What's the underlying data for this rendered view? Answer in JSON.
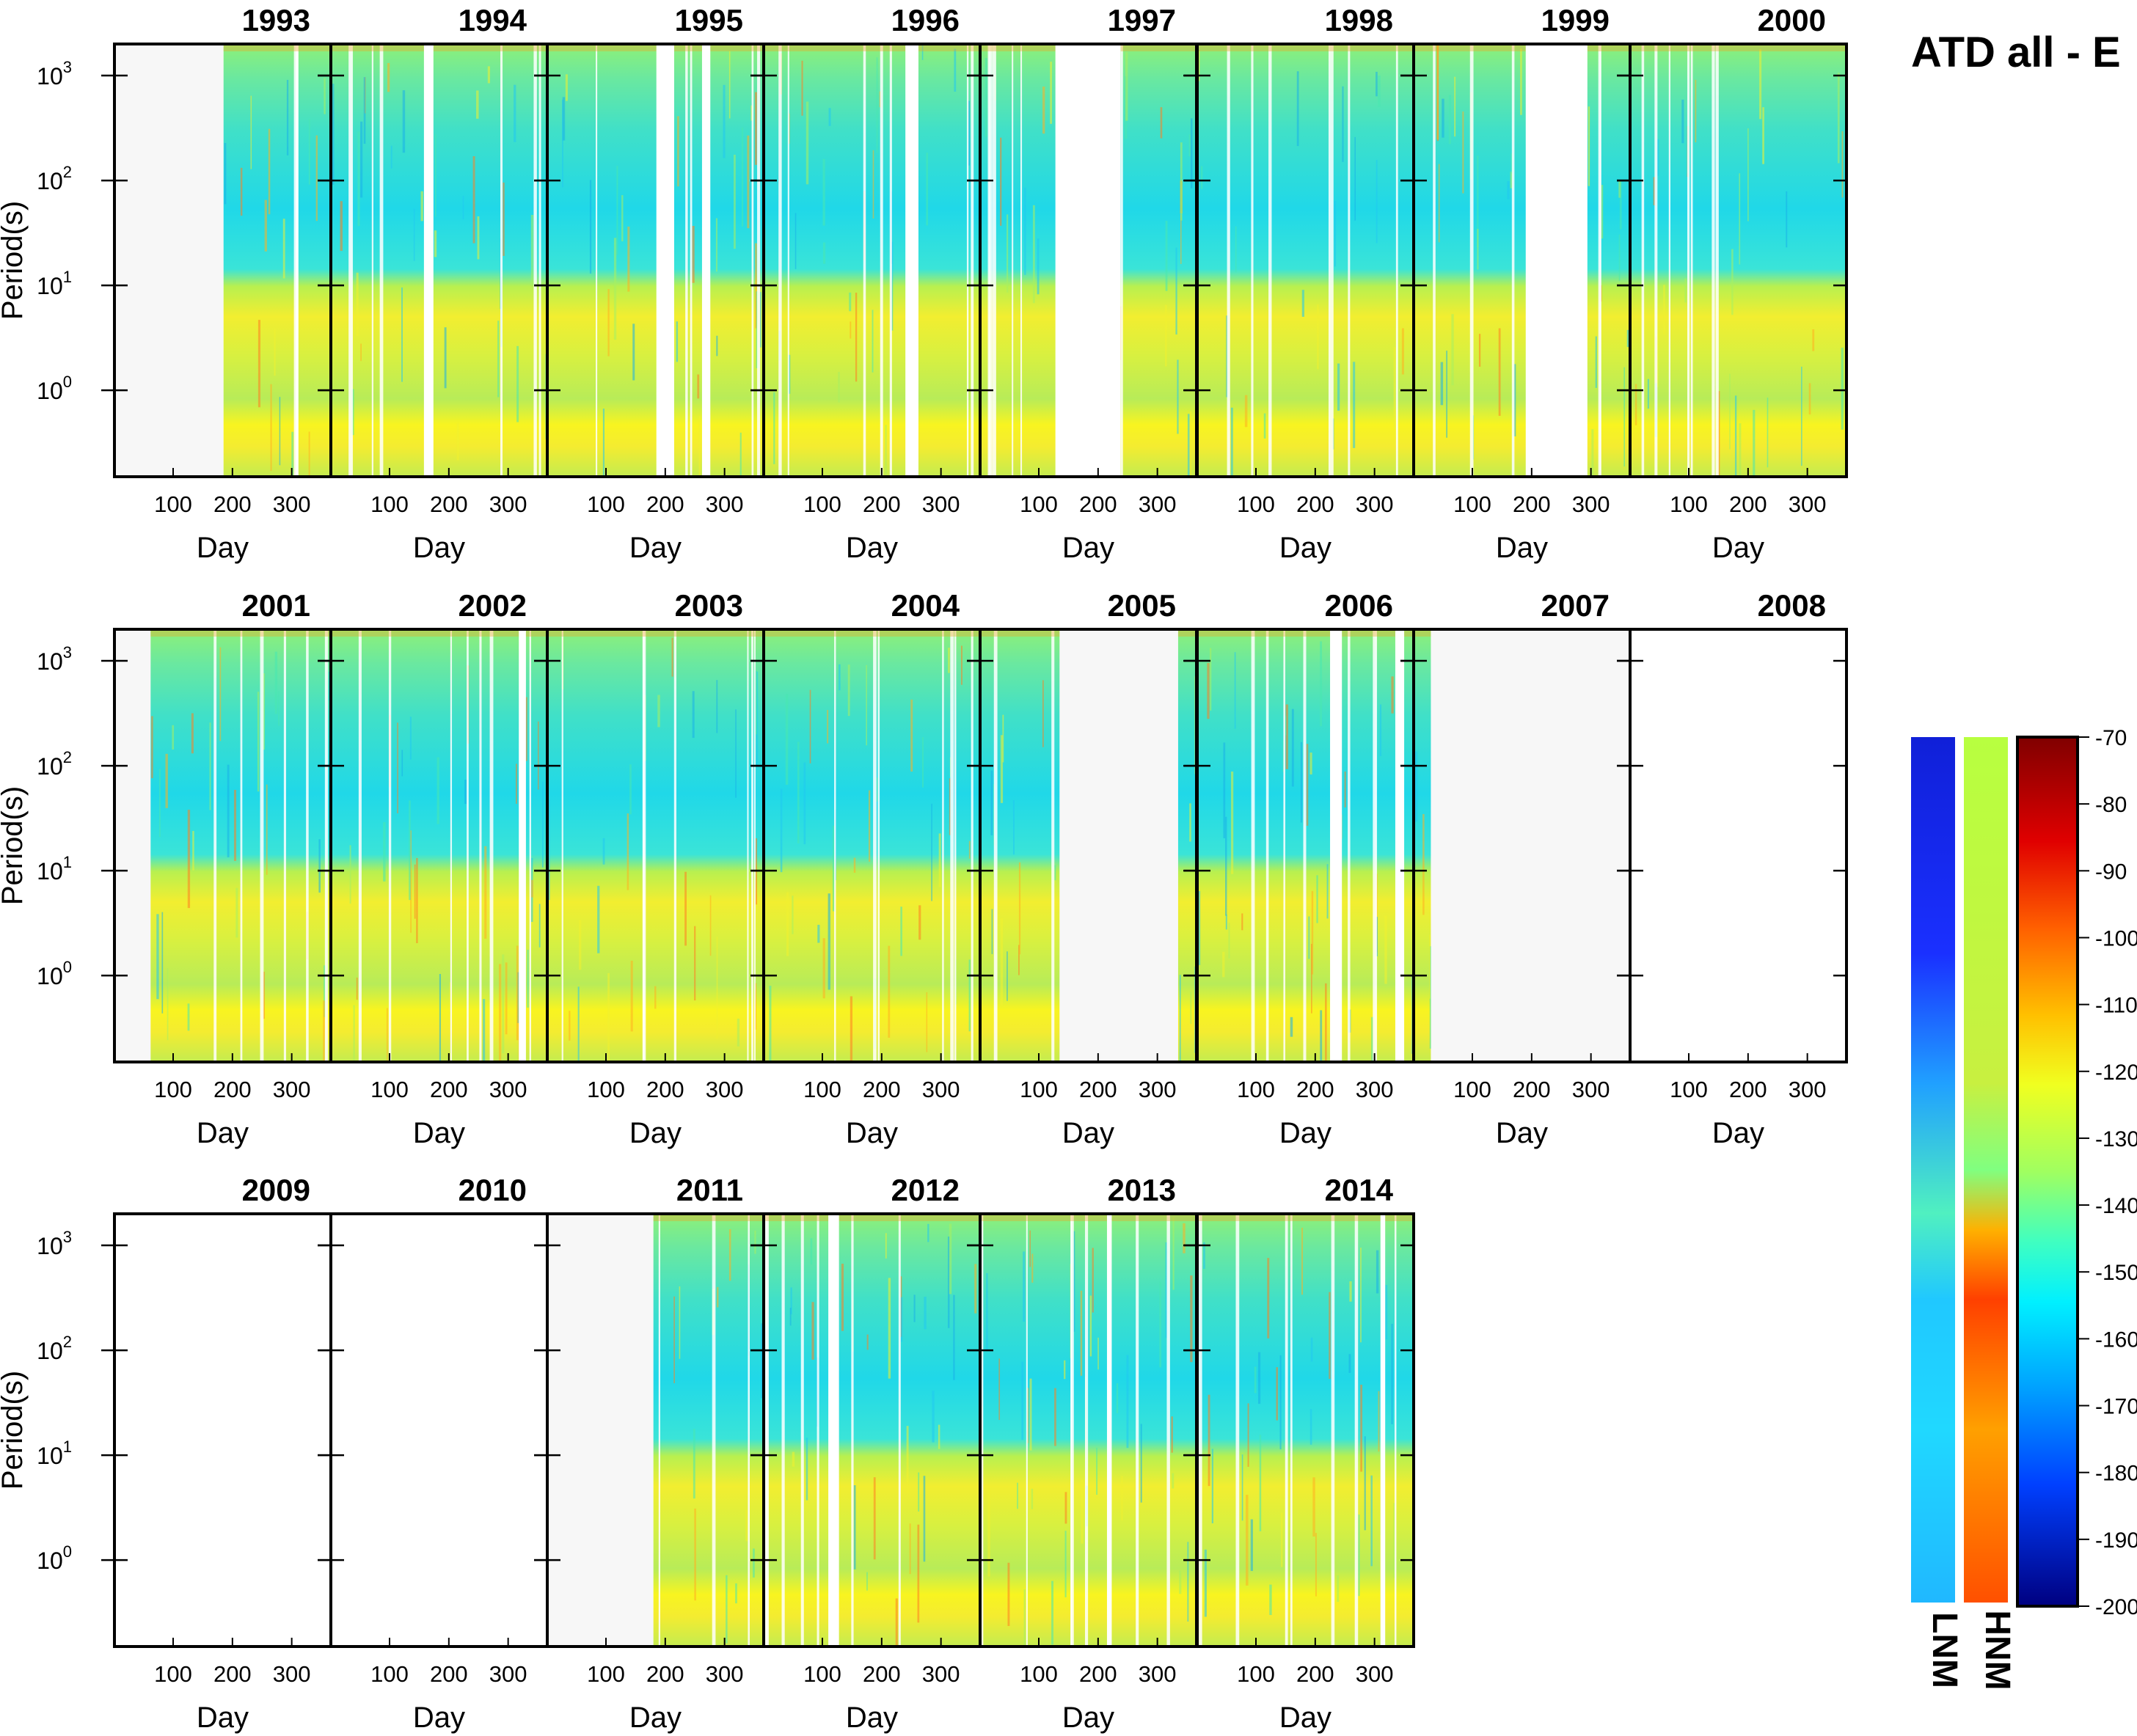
{
  "title": "ATD all - E",
  "chart_data": {
    "type": "heatmap",
    "title": "ATD all - E",
    "xlabel": "Day",
    "ylabel": "Period(s)",
    "x_ticks": [
      "100",
      "200",
      "300"
    ],
    "y_ticks": [
      {
        "value": 1,
        "base": "10",
        "exp": "0"
      },
      {
        "value": 10,
        "base": "10",
        "exp": "1"
      },
      {
        "value": 100,
        "base": "10",
        "exp": "2"
      },
      {
        "value": 1000,
        "base": "10",
        "exp": "3"
      }
    ],
    "x_range": [
      1,
      366
    ],
    "y_scale": "log",
    "y_range": [
      0.15,
      2000
    ],
    "panels": [
      {
        "year": "1993",
        "data_days": [
          [
            185,
            366
          ]
        ],
        "na_days": [
          [
            1,
            185
          ]
        ],
        "gap_days": []
      },
      {
        "year": "1994",
        "data_days": [
          [
            1,
            366
          ]
        ],
        "na_days": [],
        "gap_days": [
          [
            158,
            174
          ]
        ]
      },
      {
        "year": "1995",
        "data_days": [
          [
            1,
            366
          ]
        ],
        "na_days": [],
        "gap_days": [
          [
            185,
            215
          ],
          [
            262,
            276
          ]
        ]
      },
      {
        "year": "1996",
        "data_days": [
          [
            1,
            366
          ]
        ],
        "na_days": [],
        "gap_days": [
          [
            240,
            262
          ]
        ]
      },
      {
        "year": "1997",
        "data_days": [
          [
            1,
            366
          ]
        ],
        "na_days": [],
        "gap_days": [
          [
            128,
            238
          ]
        ]
      },
      {
        "year": "1998",
        "data_days": [
          [
            1,
            366
          ]
        ],
        "na_days": [],
        "gap_days": []
      },
      {
        "year": "1999",
        "data_days": [
          [
            1,
            366
          ]
        ],
        "na_days": [],
        "gap_days": [
          [
            190,
            294
          ]
        ]
      },
      {
        "year": "2000",
        "data_days": [
          [
            1,
            366
          ]
        ],
        "na_days": [],
        "gap_days": []
      },
      {
        "year": "2001",
        "data_days": [
          [
            62,
            366
          ]
        ],
        "na_days": [
          [
            1,
            62
          ]
        ],
        "gap_days": []
      },
      {
        "year": "2002",
        "data_days": [
          [
            1,
            366
          ]
        ],
        "na_days": [],
        "gap_days": [
          [
            318,
            330
          ]
        ]
      },
      {
        "year": "2003",
        "data_days": [
          [
            1,
            366
          ]
        ],
        "na_days": [],
        "gap_days": []
      },
      {
        "year": "2004",
        "data_days": [
          [
            1,
            366
          ]
        ],
        "na_days": [],
        "gap_days": []
      },
      {
        "year": "2005",
        "data_days": [
          [
            1,
            135
          ],
          [
            335,
            366
          ]
        ],
        "na_days": [
          [
            135,
            335
          ]
        ],
        "gap_days": []
      },
      {
        "year": "2006",
        "data_days": [
          [
            1,
            366
          ]
        ],
        "na_days": [],
        "gap_days": [
          [
            225,
            245
          ],
          [
            335,
            350
          ]
        ]
      },
      {
        "year": "2007",
        "data_days": [
          [
            1,
            30
          ]
        ],
        "na_days": [
          [
            30,
            366
          ]
        ],
        "gap_days": []
      },
      {
        "year": "2008",
        "data_days": [],
        "na_days": [],
        "gap_days": []
      },
      {
        "year": "2009",
        "data_days": [],
        "na_days": [],
        "gap_days": []
      },
      {
        "year": "2010",
        "data_days": [],
        "na_days": [],
        "gap_days": []
      },
      {
        "year": "2011",
        "data_days": [
          [
            180,
            366
          ]
        ],
        "na_days": [
          [
            1,
            180
          ]
        ],
        "gap_days": []
      },
      {
        "year": "2012",
        "data_days": [
          [
            1,
            366
          ]
        ],
        "na_days": [],
        "gap_days": [
          [
            110,
            128
          ]
        ]
      },
      {
        "year": "2013",
        "data_days": [
          [
            1,
            366
          ]
        ],
        "na_days": [],
        "gap_days": [
          [
            215,
            223
          ]
        ]
      },
      {
        "year": "2014",
        "data_days": [
          [
            1,
            366
          ]
        ],
        "na_days": [],
        "gap_days": [
          [
            310,
            318
          ]
        ]
      }
    ],
    "colorbar": {
      "ticks": [
        "-70",
        "-80",
        "-90",
        "-100",
        "-110",
        "-120",
        "-130",
        "-140",
        "-150",
        "-160",
        "-170",
        "-180",
        "-190",
        "-200"
      ],
      "range": [
        -200,
        -70
      ],
      "colors": [
        "#000080",
        "#0000ff",
        "#00a0ff",
        "#00ffff",
        "#40e0d0",
        "#80ff80",
        "#c0ff40",
        "#ffff00",
        "#ffc000",
        "#ff8000",
        "#ff2000",
        "#c00000",
        "#800000"
      ]
    },
    "reference_bars": [
      {
        "label": "LNM",
        "colors": [
          "#1030e0",
          "#1a40ff",
          "#20b0ff",
          "#40ffd0",
          "#20e0f0",
          "#40ffff"
        ]
      },
      {
        "label": "HNM",
        "colors": [
          "#c0ff40",
          "#a0ff80",
          "#ffb000",
          "#ff4000",
          "#ffa000",
          "#ff6000"
        ]
      }
    ],
    "grid": false
  }
}
